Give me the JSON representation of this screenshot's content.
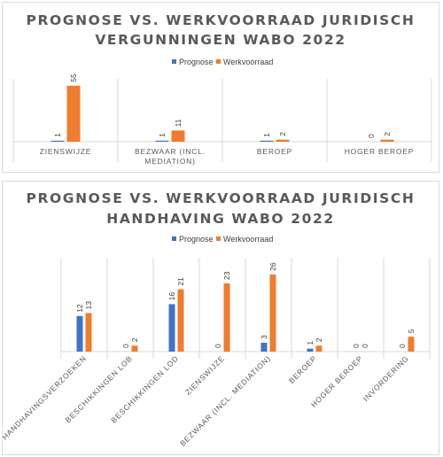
{
  "colors": {
    "prognose": "#4472c4",
    "werkvoorraad": "#ed7d31",
    "axis": "#d9d9d9",
    "text": "#595959"
  },
  "chart_data": [
    {
      "type": "bar",
      "title_lines": [
        "PROGNOSE VS. WERKVOORRAAD JURIDISCH",
        "VERGUNNINGEN WABO 2022"
      ],
      "categories": [
        "ZIENSWIJZE",
        "BEZWAAR (INCL. MEDIATION)",
        "BEROEP",
        "HOGER BEROEP"
      ],
      "category_lines": [
        [
          "ZIENSWIJZE"
        ],
        [
          "BEZWAAR (INCL.",
          "MEDIATION)"
        ],
        [
          "BEROEP"
        ],
        [
          "HOGER BEROEP"
        ]
      ],
      "series": [
        {
          "name": "Prognose",
          "values": [
            1,
            1,
            1,
            0
          ]
        },
        {
          "name": "Werkvoorraad",
          "values": [
            55,
            11,
            2,
            2
          ]
        }
      ],
      "legend_position": "top",
      "grid": false
    },
    {
      "type": "bar",
      "title_lines": [
        "PROGNOSE VS. WERKVOORRAAD JURIDISCH",
        "HANDHAVING WABO 2022"
      ],
      "categories": [
        "HANDHAVINGSVERZOEKEN",
        "BESCHIKKINGEN LOB",
        "BESCHIKKINGEN LOD",
        "ZIENSWIJZE",
        "BEZWAAR (INCL. MEDIATION)",
        "BEROEP",
        "HOGER BEROEP",
        "INVORDERING"
      ],
      "series": [
        {
          "name": "Prognose",
          "values": [
            12,
            0,
            16,
            0,
            3,
            1,
            0,
            0
          ]
        },
        {
          "name": "Werkvoorraad",
          "values": [
            13,
            2,
            21,
            23,
            26,
            2,
            0,
            5
          ]
        }
      ],
      "legend_position": "top",
      "grid": false
    }
  ]
}
